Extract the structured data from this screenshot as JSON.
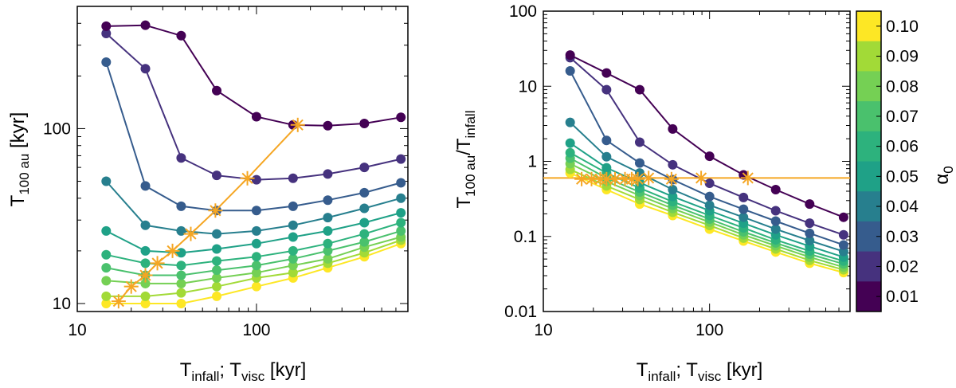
{
  "chart_data": [
    {
      "type": "line",
      "panel": "left",
      "xscale": "log",
      "yscale": "log",
      "xlim": [
        10,
        700
      ],
      "ylim": [
        9,
        500
      ],
      "xticks": [
        "10",
        "100"
      ],
      "yticks": [
        "10",
        "100"
      ],
      "xlabel": "T_infall; T_visc [kyr]",
      "ylabel": "T_100 au [kyr]",
      "x": [
        14.5,
        24,
        38,
        60,
        100,
        160,
        250,
        400,
        640
      ],
      "series": [
        {
          "name": "α0 = 0.01",
          "color": "#440154",
          "values": [
            385,
            390,
            340,
            165,
            117,
            105,
            104,
            107,
            116
          ]
        },
        {
          "name": "α0 = 0.02",
          "color": "#46327e",
          "values": [
            350,
            220,
            68,
            54,
            51,
            52,
            55,
            60,
            67
          ]
        },
        {
          "name": "α0 = 0.03",
          "color": "#365c8d",
          "values": [
            240,
            47,
            36,
            34,
            34,
            36,
            39,
            43,
            49
          ]
        },
        {
          "name": "α0 = 0.04",
          "color": "#277f8e",
          "values": [
            50,
            28,
            26,
            25,
            26,
            28,
            31,
            35,
            40
          ]
        },
        {
          "name": "α0 = 0.05",
          "color": "#1fa187",
          "values": [
            26,
            20,
            19.5,
            20.5,
            22,
            24,
            26,
            29,
            33
          ]
        },
        {
          "name": "α0 = 0.06",
          "color": "#2db27d",
          "values": [
            19,
            17,
            16.5,
            17.5,
            18.5,
            20,
            22,
            25,
            29
          ]
        },
        {
          "name": "α0 = 0.07",
          "color": "#4ac16d",
          "values": [
            16,
            14.5,
            14.5,
            15.5,
            16.5,
            18,
            20,
            22.5,
            26
          ]
        },
        {
          "name": "α0 = 0.08",
          "color": "#75d054",
          "values": [
            13.5,
            13,
            13,
            14,
            15,
            16.5,
            18,
            21,
            24
          ]
        },
        {
          "name": "α0 = 0.09",
          "color": "#a2da37",
          "values": [
            11,
            11,
            11.5,
            12.5,
            14,
            15,
            17,
            19.5,
            23
          ]
        },
        {
          "name": "α0 = 0.10",
          "color": "#fde725",
          "values": [
            10,
            10,
            10,
            11,
            12.5,
            14,
            16,
            18.5,
            22
          ]
        }
      ],
      "markers": {
        "name": "critical points",
        "color": "#f5a623",
        "x": [
          17,
          20,
          24,
          28,
          34,
          43,
          59,
          89,
          170
        ],
        "y": [
          10.3,
          12.5,
          14.5,
          17,
          20,
          25,
          34,
          52,
          105
        ]
      }
    },
    {
      "type": "line",
      "panel": "right",
      "xscale": "log",
      "yscale": "log",
      "xlim": [
        10,
        700
      ],
      "ylim": [
        0.01,
        100
      ],
      "xticks": [
        "10",
        "100"
      ],
      "yticks": [
        "0.01",
        "0.1",
        "1",
        "10",
        "100"
      ],
      "xlabel": "T_infall; T_visc [kyr]",
      "ylabel": "T_100 au / T_infall",
      "x": [
        14.5,
        24,
        38,
        60,
        100,
        160,
        250,
        400,
        640
      ],
      "hline": {
        "y": 0.6,
        "color": "#f5a623"
      },
      "series": [
        {
          "name": "α0 = 0.01",
          "color": "#440154",
          "values": [
            26,
            15,
            9,
            2.7,
            1.17,
            0.66,
            0.42,
            0.27,
            0.18
          ]
        },
        {
          "name": "α0 = 0.02",
          "color": "#46327e",
          "values": [
            24,
            9,
            1.8,
            0.9,
            0.51,
            0.33,
            0.22,
            0.15,
            0.105
          ]
        },
        {
          "name": "α0 = 0.03",
          "color": "#365c8d",
          "values": [
            16,
            1.9,
            0.95,
            0.57,
            0.34,
            0.23,
            0.16,
            0.11,
            0.077
          ]
        },
        {
          "name": "α0 = 0.04",
          "color": "#277f8e",
          "values": [
            3.3,
            1.15,
            0.7,
            0.42,
            0.26,
            0.18,
            0.125,
            0.088,
            0.063
          ]
        },
        {
          "name": "α0 = 0.05",
          "color": "#1fa187",
          "values": [
            1.75,
            0.82,
            0.52,
            0.34,
            0.22,
            0.15,
            0.105,
            0.074,
            0.053
          ]
        },
        {
          "name": "α0 = 0.06",
          "color": "#2db27d",
          "values": [
            1.3,
            0.7,
            0.44,
            0.29,
            0.19,
            0.13,
            0.09,
            0.064,
            0.047
          ]
        },
        {
          "name": "α0 = 0.07",
          "color": "#4ac16d",
          "values": [
            1.1,
            0.6,
            0.39,
            0.26,
            0.17,
            0.115,
            0.082,
            0.058,
            0.043
          ]
        },
        {
          "name": "α0 = 0.08",
          "color": "#75d054",
          "values": [
            0.93,
            0.54,
            0.35,
            0.235,
            0.155,
            0.105,
            0.075,
            0.053,
            0.039
          ]
        },
        {
          "name": "α0 = 0.09",
          "color": "#a2da37",
          "values": [
            0.78,
            0.47,
            0.31,
            0.21,
            0.14,
            0.095,
            0.068,
            0.048,
            0.036
          ]
        },
        {
          "name": "α0 = 0.10",
          "color": "#fde725",
          "values": [
            0.7,
            0.42,
            0.27,
            0.19,
            0.125,
            0.087,
            0.062,
            0.044,
            0.033
          ]
        }
      ],
      "markers": {
        "name": "critical points",
        "color": "#f5a623",
        "x": [
          17,
          19.5,
          22,
          24,
          27,
          31,
          34,
          37,
          43,
          59,
          89,
          170
        ],
        "y": [
          0.58,
          0.58,
          0.58,
          0.58,
          0.58,
          0.58,
          0.58,
          0.58,
          0.6,
          0.58,
          0.6,
          0.6
        ]
      }
    }
  ],
  "colorbar": {
    "label": "α",
    "label_sub": "0",
    "ticks": [
      "0.10",
      "0.09",
      "0.08",
      "0.07",
      "0.06",
      "0.05",
      "0.04",
      "0.03",
      "0.02",
      "0.01"
    ],
    "colors": [
      "#fde725",
      "#a2da37",
      "#75d054",
      "#4ac16d",
      "#2db27d",
      "#1fa187",
      "#277f8e",
      "#365c8d",
      "#46327e",
      "#440154"
    ]
  },
  "labels": {
    "left_y_main": "T",
    "left_y_sub": "100 au",
    "left_y_rest": " [kyr]",
    "right_y_main": "T",
    "right_y_sub": "100 au",
    "right_y_mid": "/T",
    "right_y_sub2": "infall",
    "x_main": "T",
    "x_sub": "infall",
    "x_mid": "; T",
    "x_sub2": "visc",
    "x_rest": " [kyr]"
  }
}
